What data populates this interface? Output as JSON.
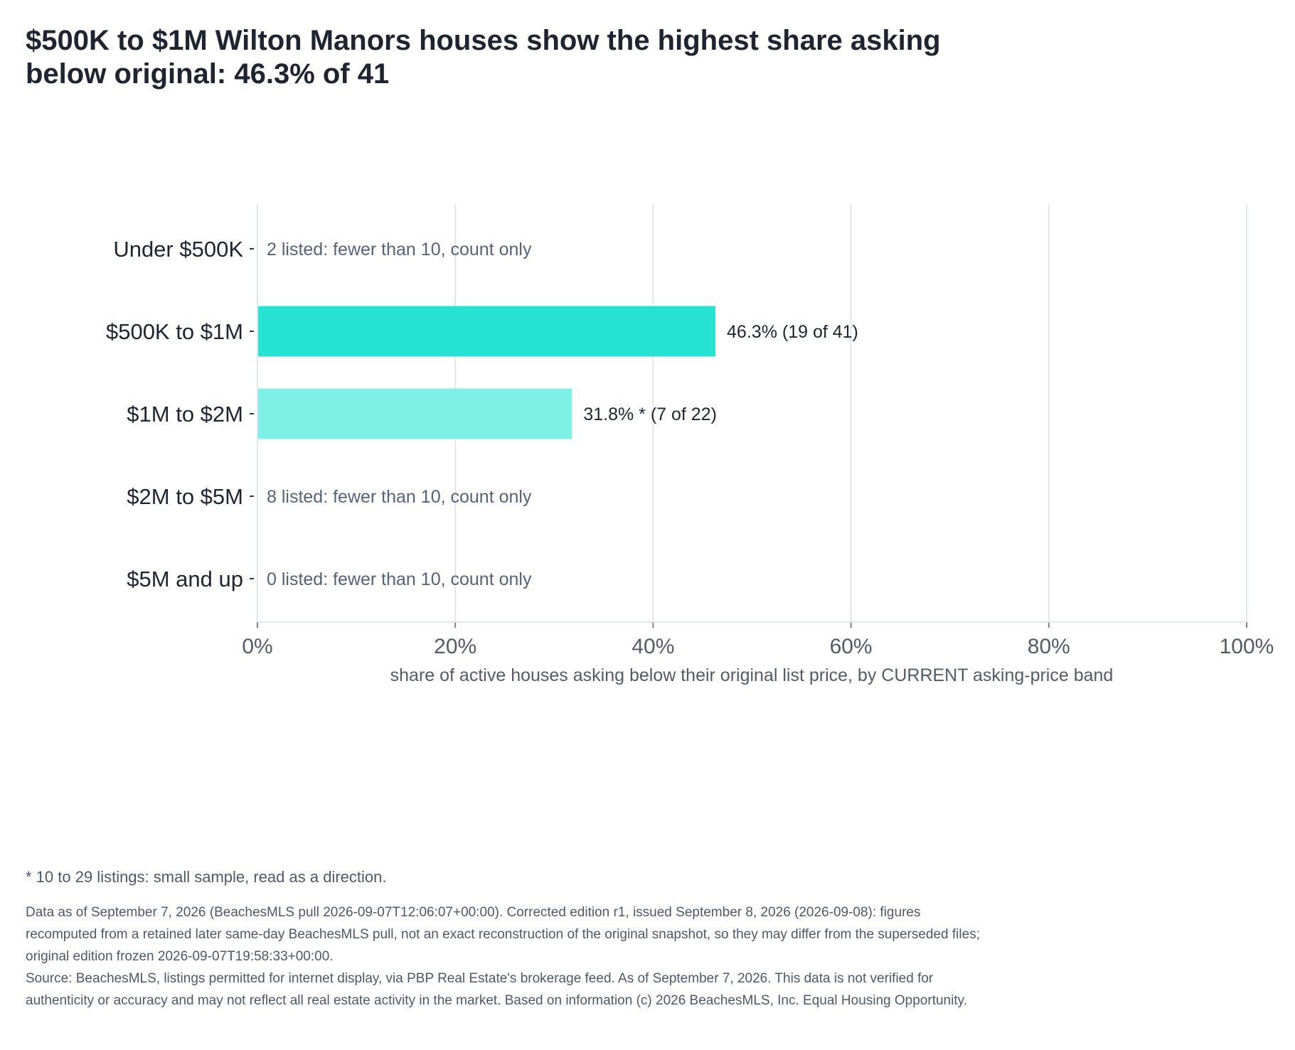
{
  "title": "$500K to $1M Wilton Manors houses show the highest share asking below original: 46.3% of 41",
  "chart_data": {
    "type": "bar",
    "orientation": "horizontal",
    "categories": [
      "Under $500K",
      "$500K to $1M",
      "$1M to $2M",
      "$2M to $5M",
      "$5M and up"
    ],
    "values": [
      null,
      46.3,
      31.8,
      null,
      null
    ],
    "bar_labels": [
      "2 listed: fewer than 10, count only",
      "46.3%  (19 of 41)",
      "31.8% *  (7 of 22)",
      "8 listed: fewer than 10, count only",
      "0 listed: fewer than 10, count only"
    ],
    "bar_colors": [
      null,
      "#26e2d3",
      "#7ff0e6",
      null,
      null
    ],
    "xlim": [
      0,
      100
    ],
    "xticks": [
      0,
      20,
      40,
      60,
      80,
      100
    ],
    "xtick_labels": [
      "0%",
      "20%",
      "40%",
      "60%",
      "80%",
      "100%"
    ],
    "xlabel": "share of active houses asking below their original list price, by CURRENT asking-price band",
    "ylabel": "",
    "grid": "vertical"
  },
  "footnote": "* 10 to 29 listings: small sample, read as a direction.",
  "data_note": "Data as of September 7, 2026 (BeachesMLS pull 2026-09-07T12:06:07+00:00). Corrected edition r1, issued September 8, 2026 (2026-09-08): figures recomputed from a retained later same-day BeachesMLS pull, not an exact reconstruction of the original snapshot, so they may differ from the superseded files; original edition frozen 2026-09-07T19:58:33+00:00.",
  "source_note": "Source: BeachesMLS, listings permitted for internet display, via PBP Real Estate's brokerage feed. As of September 7, 2026. This data is not verified for authenticity or accuracy and may not reflect all real estate activity in the market. Based on information (c) 2026 BeachesMLS, Inc. Equal Housing Opportunity."
}
